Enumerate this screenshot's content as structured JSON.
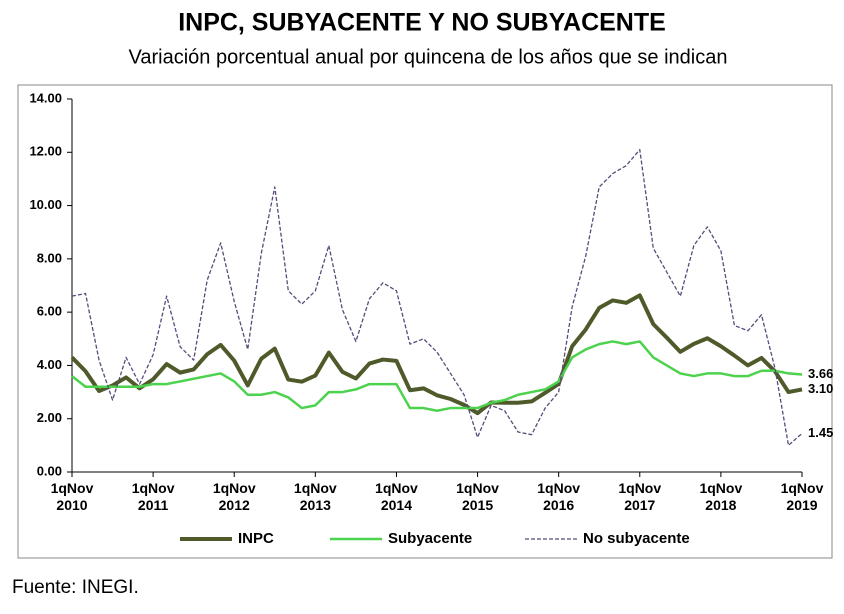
{
  "chart_data": {
    "type": "line",
    "title": "INPC, SUBYACENTE Y NO SUBYACENTE",
    "subtitle": "Variación porcentual anual por quincena de los años que se indican",
    "source": "Fuente:  INEGI.",
    "categories": [
      "1qNov 2010",
      null,
      null,
      null,
      null,
      null,
      "1qNov 2011",
      null,
      null,
      null,
      null,
      null,
      "1qNov 2012",
      null,
      null,
      null,
      null,
      null,
      "1qNov 2013",
      null,
      null,
      null,
      null,
      null,
      "1qNov 2014",
      null,
      null,
      null,
      null,
      null,
      "1qNov 2015",
      null,
      null,
      null,
      null,
      null,
      "1qNov 2016",
      null,
      null,
      null,
      null,
      null,
      "1qNov 2017",
      null,
      null,
      null,
      null,
      null,
      "1qNov 2018",
      null,
      null,
      null,
      null,
      null,
      "1qNov 2019"
    ],
    "ylim": [
      0,
      14
    ],
    "yticks": [
      {
        "value": 0,
        "label": "0.00"
      },
      {
        "value": 2,
        "label": "2.00"
      },
      {
        "value": 4,
        "label": "4.00"
      },
      {
        "value": 6,
        "label": "6.00"
      },
      {
        "value": 8,
        "label": "8.00"
      },
      {
        "value": 10,
        "label": "10.00"
      },
      {
        "value": 12,
        "label": "12.00"
      },
      {
        "value": 14,
        "label": "14.00"
      }
    ],
    "series": [
      {
        "name": "INPC",
        "color": "#4f5a2b",
        "width": 4,
        "dash": false,
        "values": [
          4.3,
          3.78,
          3.04,
          3.25,
          3.55,
          3.14,
          3.48,
          4.05,
          3.73,
          3.85,
          4.42,
          4.77,
          4.18,
          3.25,
          4.25,
          4.63,
          3.47,
          3.39,
          3.62,
          4.48,
          3.76,
          3.51,
          4.07,
          4.22,
          4.17,
          3.07,
          3.14,
          2.88,
          2.74,
          2.52,
          2.21,
          2.61,
          2.6,
          2.6,
          2.65,
          2.97,
          3.31,
          4.72,
          5.35,
          6.16,
          6.44,
          6.35,
          6.63,
          5.55,
          5.04,
          4.51,
          4.81,
          5.02,
          4.72,
          4.37,
          4.0,
          4.28,
          3.78,
          3.0,
          3.1
        ],
        "value_labels": [
          null,
          null,
          null,
          null,
          null,
          null,
          null,
          null,
          null,
          null,
          null,
          null,
          null,
          null,
          null,
          null,
          null,
          null,
          null,
          null,
          null,
          null,
          null,
          null,
          null,
          null,
          null,
          null,
          null,
          null,
          null,
          null,
          null,
          null,
          null,
          null,
          null,
          null,
          null,
          null,
          null,
          null,
          null,
          null,
          null,
          null,
          null,
          null,
          null,
          null,
          null,
          null,
          null,
          null,
          "3.10"
        ]
      },
      {
        "name": "Subyacente",
        "color": "#4cd24c",
        "width": 2.5,
        "dash": false,
        "values": [
          3.6,
          3.2,
          3.2,
          3.2,
          3.2,
          3.2,
          3.3,
          3.3,
          3.4,
          3.5,
          3.6,
          3.7,
          3.4,
          2.9,
          2.9,
          3.0,
          2.8,
          2.4,
          2.5,
          3.0,
          3.0,
          3.1,
          3.3,
          3.3,
          3.3,
          2.4,
          2.4,
          2.3,
          2.4,
          2.4,
          2.4,
          2.6,
          2.7,
          2.9,
          3.0,
          3.1,
          3.4,
          4.3,
          4.6,
          4.8,
          4.9,
          4.8,
          4.9,
          4.3,
          4.0,
          3.7,
          3.6,
          3.7,
          3.7,
          3.6,
          3.6,
          3.8,
          3.8,
          3.7,
          3.66
        ],
        "value_labels": [
          null,
          null,
          null,
          null,
          null,
          null,
          null,
          null,
          null,
          null,
          null,
          null,
          null,
          null,
          null,
          null,
          null,
          null,
          null,
          null,
          null,
          null,
          null,
          null,
          null,
          null,
          null,
          null,
          null,
          null,
          null,
          null,
          null,
          null,
          null,
          null,
          null,
          null,
          null,
          null,
          null,
          null,
          null,
          null,
          null,
          null,
          null,
          null,
          null,
          null,
          null,
          null,
          null,
          null,
          "3.66"
        ]
      },
      {
        "name": "No subyacente",
        "color": "#5a4a7a",
        "width": 1.3,
        "dash": true,
        "values": [
          6.6,
          6.7,
          4.2,
          2.7,
          4.3,
          3.3,
          4.4,
          6.6,
          4.7,
          4.2,
          7.2,
          8.6,
          6.4,
          4.6,
          8.2,
          10.7,
          6.8,
          6.3,
          6.8,
          8.5,
          6.1,
          4.9,
          6.5,
          7.1,
          6.8,
          4.8,
          5.0,
          4.5,
          3.7,
          2.9,
          1.3,
          2.5,
          2.3,
          1.5,
          1.4,
          2.4,
          3.0,
          6.2,
          8.1,
          10.7,
          11.2,
          11.5,
          12.1,
          8.4,
          7.5,
          6.6,
          8.5,
          9.2,
          8.3,
          5.5,
          5.3,
          5.9,
          3.9,
          1.0,
          1.45
        ],
        "value_labels": [
          null,
          null,
          null,
          null,
          null,
          null,
          null,
          null,
          null,
          null,
          null,
          null,
          null,
          null,
          null,
          null,
          null,
          null,
          null,
          null,
          null,
          null,
          null,
          null,
          null,
          null,
          null,
          null,
          null,
          null,
          null,
          null,
          null,
          null,
          null,
          null,
          null,
          null,
          null,
          null,
          null,
          null,
          null,
          null,
          null,
          null,
          null,
          null,
          null,
          null,
          null,
          null,
          null,
          null,
          "1.45"
        ]
      }
    ]
  }
}
